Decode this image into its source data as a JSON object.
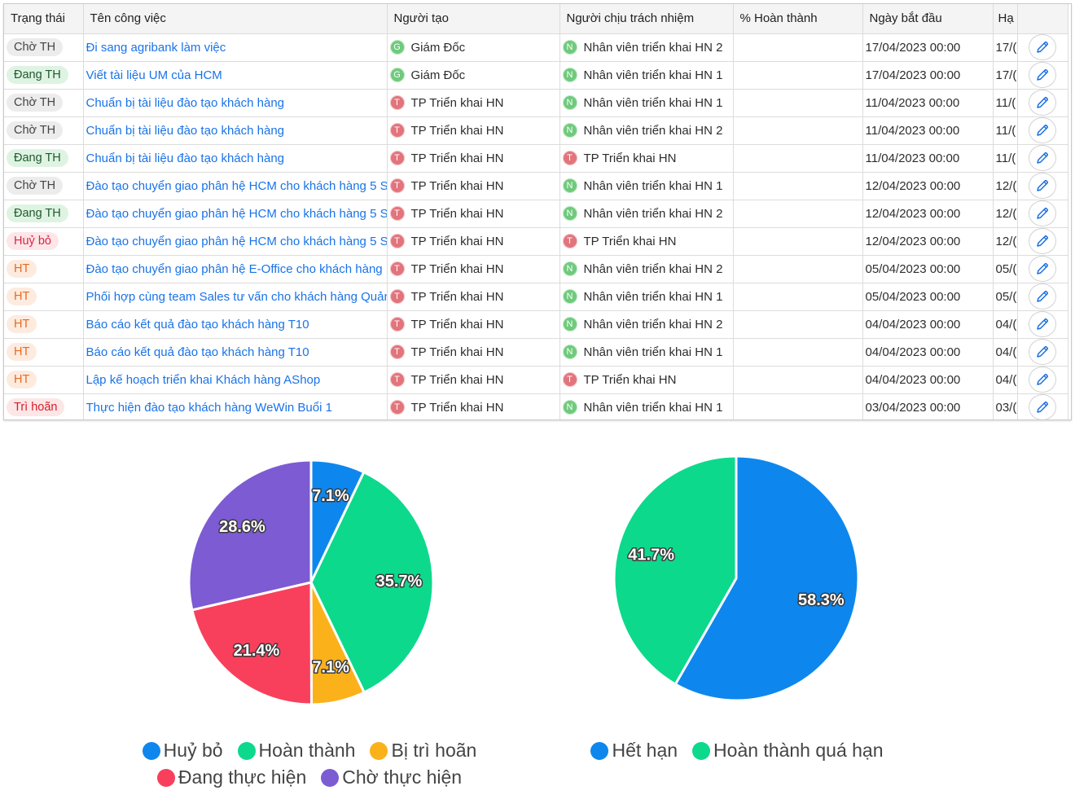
{
  "table": {
    "headers": {
      "status": "Trạng thái",
      "name": "Tên công việc",
      "creator": "Người tạo",
      "assignee": "Người chịu trách nhiệm",
      "percent": "% Hoàn thành",
      "start": "Ngày bắt đầu",
      "end": "Hạ"
    },
    "rows": [
      {
        "status": "Chờ TH",
        "status_class": "cho",
        "name": "Đi sang agribank làm việc",
        "creator_initial": "G",
        "creator": "Giám Đốc",
        "assignee_initial": "N",
        "assignee": "Nhân viên triển khai HN 2",
        "percent": "",
        "start": "17/04/2023 00:00",
        "end": "17/("
      },
      {
        "status": "Đang TH",
        "status_class": "dang",
        "name": "Viết tài liệu UM của HCM",
        "creator_initial": "G",
        "creator": "Giám Đốc",
        "assignee_initial": "N",
        "assignee": "Nhân viên triển khai HN 1",
        "percent": "",
        "start": "17/04/2023 00:00",
        "end": "17/("
      },
      {
        "status": "Chờ TH",
        "status_class": "cho",
        "name": "Chuẩn bị tài liệu đào tạo khách hàng",
        "creator_initial": "T",
        "creator": "TP Triển khai HN",
        "assignee_initial": "N",
        "assignee": "Nhân viên triển khai HN 1",
        "percent": "",
        "start": "11/04/2023 00:00",
        "end": "11/("
      },
      {
        "status": "Chờ TH",
        "status_class": "cho",
        "name": "Chuẩn bị tài liệu đào tạo khách hàng",
        "creator_initial": "T",
        "creator": "TP Triển khai HN",
        "assignee_initial": "N",
        "assignee": "Nhân viên triển khai HN 2",
        "percent": "",
        "start": "11/04/2023 00:00",
        "end": "11/("
      },
      {
        "status": "Đang TH",
        "status_class": "dang",
        "name": "Chuẩn bị tài liệu đào tạo khách hàng",
        "creator_initial": "T",
        "creator": "TP Triển khai HN",
        "assignee_initial": "T",
        "assignee": "TP Triển khai HN",
        "percent": "",
        "start": "11/04/2023 00:00",
        "end": "11/("
      },
      {
        "status": "Chờ TH",
        "status_class": "cho",
        "name": "Đào tạo chuyển giao phân hệ HCM cho khách hàng 5 S.",
        "creator_initial": "T",
        "creator": "TP Triển khai HN",
        "assignee_initial": "N",
        "assignee": "Nhân viên triển khai HN 1",
        "percent": "",
        "start": "12/04/2023 00:00",
        "end": "12/("
      },
      {
        "status": "Đang TH",
        "status_class": "dang",
        "name": "Đào tạo chuyển giao phân hệ HCM cho khách hàng 5 S.",
        "creator_initial": "T",
        "creator": "TP Triển khai HN",
        "assignee_initial": "N",
        "assignee": "Nhân viên triển khai HN 2",
        "percent": "",
        "start": "12/04/2023 00:00",
        "end": "12/("
      },
      {
        "status": "Huỷ bỏ",
        "status_class": "huy",
        "name": "Đào tạo chuyển giao phân hệ HCM cho khách hàng 5 S.",
        "creator_initial": "T",
        "creator": "TP Triển khai HN",
        "assignee_initial": "T",
        "assignee": "TP Triển khai HN",
        "percent": "",
        "start": "12/04/2023 00:00",
        "end": "12/("
      },
      {
        "status": "HT",
        "status_class": "ht",
        "name": "Đào tạo chuyển giao phân hệ E-Office cho khách hàng",
        "creator_initial": "T",
        "creator": "TP Triển khai HN",
        "assignee_initial": "N",
        "assignee": "Nhân viên triển khai HN 2",
        "percent": "",
        "start": "05/04/2023 00:00",
        "end": "05/("
      },
      {
        "status": "HT",
        "status_class": "ht",
        "name": "Phối hợp cùng team Sales tư vấn cho khách hàng Quản",
        "creator_initial": "T",
        "creator": "TP Triển khai HN",
        "assignee_initial": "N",
        "assignee": "Nhân viên triển khai HN 1",
        "percent": "",
        "start": "05/04/2023 00:00",
        "end": "05/("
      },
      {
        "status": "HT",
        "status_class": "ht",
        "name": "Báo cáo kết quả đào tạo khách hàng T10",
        "creator_initial": "T",
        "creator": "TP Triển khai HN",
        "assignee_initial": "N",
        "assignee": "Nhân viên triển khai HN 2",
        "percent": "",
        "start": "04/04/2023 00:00",
        "end": "04/("
      },
      {
        "status": "HT",
        "status_class": "ht",
        "name": "Báo cáo kết quả đào tạo khách hàng T10",
        "creator_initial": "T",
        "creator": "TP Triển khai HN",
        "assignee_initial": "N",
        "assignee": "Nhân viên triển khai HN 1",
        "percent": "",
        "start": "04/04/2023 00:00",
        "end": "04/("
      },
      {
        "status": "HT",
        "status_class": "ht",
        "name": "Lập kế hoạch triển khai Khách hàng AShop",
        "creator_initial": "T",
        "creator": "TP Triển khai HN",
        "assignee_initial": "T",
        "assignee": "TP Triển khai HN",
        "percent": "",
        "start": "04/04/2023 00:00",
        "end": "04/("
      },
      {
        "status": "Trì hoãn",
        "status_class": "tri",
        "name": "Thực hiện đào tạo khách hàng WeWin Buổi 1",
        "creator_initial": "T",
        "creator": "TP Triển khai HN",
        "assignee_initial": "N",
        "assignee": "Nhân viên triển khai HN 1",
        "percent": "",
        "start": "03/04/2023 00:00",
        "end": "03/("
      }
    ]
  },
  "chart_data": [
    {
      "type": "pie",
      "labels": [
        "Huỷ bỏ",
        "Hoàn thành",
        "Bị trì hoãn",
        "Đang thực hiện",
        "Chờ thực hiện"
      ],
      "values": [
        7.1,
        35.7,
        7.1,
        21.4,
        28.6
      ],
      "value_labels": [
        "7.1%",
        "35.7%",
        "7.1%",
        "21.4%",
        "28.6%"
      ],
      "colors": [
        "#0d87ee",
        "#0cd98c",
        "#fbb11a",
        "#f8405c",
        "#7c5bd3"
      ],
      "legend": "bottom"
    },
    {
      "type": "pie",
      "labels": [
        "Hết hạn",
        "Hoàn thành quá hạn"
      ],
      "values": [
        58.3,
        41.7
      ],
      "value_labels": [
        "58.3%",
        "41.7%"
      ],
      "colors": [
        "#0d87ee",
        "#0cd98c"
      ],
      "legend": "bottom"
    }
  ]
}
